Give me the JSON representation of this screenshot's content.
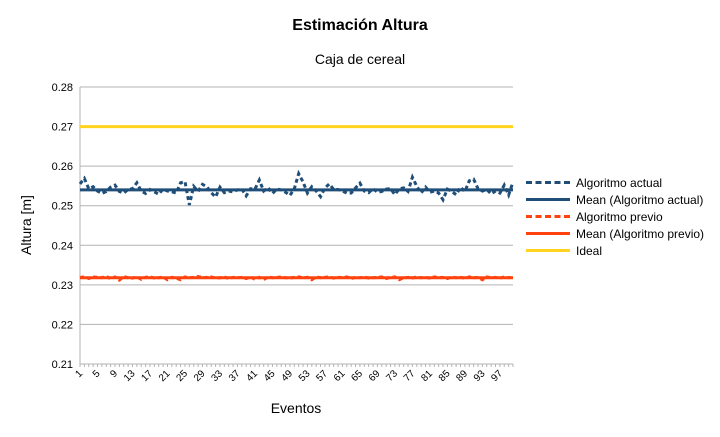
{
  "chart_data": {
    "type": "line",
    "title": "Estimación Altura",
    "subtitle": "Caja de cereal",
    "xlabel": "Eventos",
    "ylabel": "Altura [m]",
    "ylim": [
      0.21,
      0.28
    ],
    "yticks": [
      "0.21",
      "0.22",
      "0.23",
      "0.24",
      "0.25",
      "0.26",
      "0.27",
      "0.28"
    ],
    "x": [
      1,
      2,
      3,
      4,
      5,
      6,
      7,
      8,
      9,
      10,
      11,
      12,
      13,
      14,
      15,
      16,
      17,
      18,
      19,
      20,
      21,
      22,
      23,
      24,
      25,
      26,
      27,
      28,
      29,
      30,
      31,
      32,
      33,
      34,
      35,
      36,
      37,
      38,
      39,
      40,
      41,
      42,
      43,
      44,
      45,
      46,
      47,
      48,
      49,
      50,
      51,
      52,
      53,
      54,
      55,
      56,
      57,
      58,
      59,
      60,
      61,
      62,
      63,
      64,
      65,
      66,
      67,
      68,
      69,
      70,
      71,
      72,
      73,
      74,
      75,
      76,
      77,
      78,
      79,
      80,
      81,
      82,
      83,
      84,
      85,
      86,
      87,
      88,
      89,
      90,
      91,
      92,
      93,
      94,
      95,
      96,
      97,
      98,
      99,
      100
    ],
    "xtick_labels": [
      "1",
      "5",
      "9",
      "13",
      "17",
      "21",
      "25",
      "29",
      "33",
      "37",
      "41",
      "45",
      "49",
      "53",
      "57",
      "61",
      "65",
      "69",
      "73",
      "77",
      "81",
      "85",
      "89",
      "93",
      "97"
    ],
    "grid": true,
    "legend_position": "right",
    "series": [
      {
        "name": "Algoritmo actual",
        "style": "dashed",
        "color": "#1f4e79",
        "values": [
          0.2555,
          0.2569,
          0.2543,
          0.2548,
          0.2537,
          0.2531,
          0.2536,
          0.2547,
          0.2552,
          0.2536,
          0.2532,
          0.2541,
          0.2543,
          0.2558,
          0.2537,
          0.2531,
          0.2541,
          0.2535,
          0.2529,
          0.2542,
          0.2537,
          0.2535,
          0.2532,
          0.2558,
          0.2561,
          0.2502,
          0.2549,
          0.2536,
          0.2554,
          0.2548,
          0.2533,
          0.2522,
          0.2547,
          0.2533,
          0.2537,
          0.2535,
          0.254,
          0.2542,
          0.2525,
          0.2543,
          0.2542,
          0.2565,
          0.2537,
          0.2546,
          0.2531,
          0.2542,
          0.254,
          0.2534,
          0.2526,
          0.2543,
          0.2581,
          0.256,
          0.2532,
          0.2548,
          0.2537,
          0.2523,
          0.2545,
          0.2555,
          0.2541,
          0.2541,
          0.2537,
          0.2532,
          0.2532,
          0.2545,
          0.2557,
          0.2537,
          0.2533,
          0.2543,
          0.2534,
          0.2536,
          0.2542,
          0.2543,
          0.2528,
          0.2543,
          0.2545,
          0.2536,
          0.2572,
          0.2549,
          0.2532,
          0.2547,
          0.2534,
          0.2537,
          0.2532,
          0.2515,
          0.2542,
          0.2536,
          0.2528,
          0.2547,
          0.2536,
          0.2563,
          0.2567,
          0.2543,
          0.2537,
          0.2541,
          0.253,
          0.2537,
          0.2532,
          0.2552,
          0.2527,
          0.256
        ]
      },
      {
        "name": "Mean (Algoritmo actual)",
        "style": "solid",
        "color": "#1f4e79",
        "mean": 0.254
      },
      {
        "name": "Algoritmo previo",
        "style": "dashed",
        "color": "#ff420e",
        "values": [
          0.2318,
          0.2321,
          0.2316,
          0.232,
          0.2319,
          0.2318,
          0.2322,
          0.2315,
          0.232,
          0.2312,
          0.2321,
          0.2318,
          0.2317,
          0.232,
          0.2314,
          0.2319,
          0.2321,
          0.2317,
          0.2318,
          0.232,
          0.2313,
          0.2319,
          0.2317,
          0.2313,
          0.232,
          0.2318,
          0.2319,
          0.2321,
          0.2318,
          0.2319,
          0.232,
          0.2317,
          0.2318,
          0.232,
          0.2316,
          0.2319,
          0.2318,
          0.2319,
          0.2316,
          0.232,
          0.2314,
          0.2319,
          0.2313,
          0.232,
          0.2318,
          0.2319,
          0.232,
          0.2318,
          0.2317,
          0.2319,
          0.232,
          0.2318,
          0.2319,
          0.2313,
          0.232,
          0.2318,
          0.2319,
          0.232,
          0.2317,
          0.2319,
          0.2318,
          0.232,
          0.2316,
          0.2319,
          0.2318,
          0.232,
          0.2317,
          0.2318,
          0.2319,
          0.232,
          0.2316,
          0.2319,
          0.232,
          0.2313,
          0.2318,
          0.2319,
          0.2317,
          0.232,
          0.2318,
          0.2319,
          0.2317,
          0.232,
          0.2318,
          0.2319,
          0.2316,
          0.232,
          0.2318,
          0.2319,
          0.2317,
          0.232,
          0.2318,
          0.2319,
          0.2313,
          0.232,
          0.2318,
          0.2319,
          0.2317,
          0.232,
          0.2318,
          0.232
        ]
      },
      {
        "name": "Mean (Algoritmo previo)",
        "style": "solid",
        "color": "#ff420e",
        "mean": 0.2318
      },
      {
        "name": "Ideal",
        "style": "solid",
        "color": "#ffd320",
        "mean": 0.27
      }
    ]
  }
}
